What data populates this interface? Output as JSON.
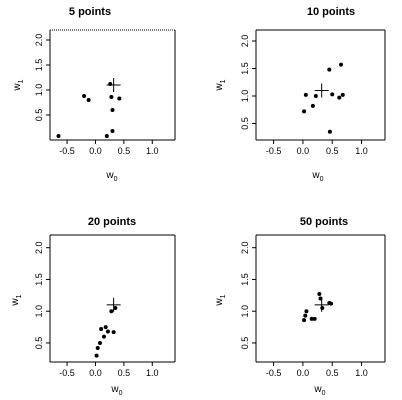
{
  "chart_data": [
    {
      "type": "scatter",
      "title": "5 points",
      "xlabel": "w",
      "xlabel_sub": "0",
      "ylabel": "w",
      "ylabel_sub": "1",
      "xlim": [
        -0.8,
        1.4
      ],
      "ylim": [
        0.0,
        2.2
      ],
      "xticks": [
        "-0.5",
        "0.0",
        "0.5",
        "1.0"
      ],
      "yticks": [
        "0.5",
        "1.0",
        "1.5",
        "2.0"
      ],
      "xtick_values": [
        -0.5,
        0.0,
        0.5,
        1.0
      ],
      "ytick_values": [
        0.5,
        1.0,
        1.5,
        2.0
      ],
      "top_border_dotted": true,
      "points": [
        {
          "x": -0.65,
          "y": 0.08
        },
        {
          "x": -0.2,
          "y": 0.88
        },
        {
          "x": -0.12,
          "y": 0.8
        },
        {
          "x": 0.2,
          "y": 0.08
        },
        {
          "x": 0.26,
          "y": 1.12
        },
        {
          "x": 0.28,
          "y": 0.86
        },
        {
          "x": 0.3,
          "y": 0.6
        },
        {
          "x": 0.3,
          "y": 0.18
        },
        {
          "x": 0.42,
          "y": 0.83
        }
      ],
      "cross": {
        "x": 0.32,
        "y": 1.1
      }
    },
    {
      "type": "scatter",
      "title": "10 points",
      "xlabel": "w",
      "xlabel_sub": "0",
      "ylabel": "w",
      "ylabel_sub": "1",
      "xlim": [
        -0.8,
        1.4
      ],
      "ylim": [
        0.2,
        2.2
      ],
      "xticks": [
        "-0.5",
        "0.0",
        "0.5",
        "1.0"
      ],
      "yticks": [
        "0.5",
        "1.0",
        "1.5",
        "2.0"
      ],
      "xtick_values": [
        -0.5,
        0.0,
        0.5,
        1.0
      ],
      "ytick_values": [
        0.5,
        1.0,
        1.5,
        2.0
      ],
      "top_border_dotted": false,
      "points": [
        {
          "x": 0.02,
          "y": 0.72
        },
        {
          "x": 0.05,
          "y": 1.02
        },
        {
          "x": 0.17,
          "y": 0.82
        },
        {
          "x": 0.22,
          "y": 1.0
        },
        {
          "x": 0.45,
          "y": 1.48
        },
        {
          "x": 0.46,
          "y": 0.35
        },
        {
          "x": 0.5,
          "y": 1.03
        },
        {
          "x": 0.62,
          "y": 0.97
        },
        {
          "x": 0.65,
          "y": 1.57
        },
        {
          "x": 0.68,
          "y": 1.02
        }
      ],
      "cross": {
        "x": 0.32,
        "y": 1.1
      }
    },
    {
      "type": "scatter",
      "title": "20 points",
      "xlabel": "w",
      "xlabel_sub": "0",
      "ylabel": "w",
      "ylabel_sub": "1",
      "xlim": [
        -0.8,
        1.4
      ],
      "ylim": [
        0.2,
        2.2
      ],
      "xticks": [
        "-0.5",
        "0.0",
        "0.5",
        "1.0"
      ],
      "yticks": [
        "0.5",
        "1.0",
        "1.5",
        "2.0"
      ],
      "xtick_values": [
        -0.5,
        0.0,
        0.5,
        1.0
      ],
      "ytick_values": [
        0.5,
        1.0,
        1.5,
        2.0
      ],
      "top_border_dotted": false,
      "points": [
        {
          "x": 0.02,
          "y": 0.3
        },
        {
          "x": 0.04,
          "y": 0.42
        },
        {
          "x": 0.08,
          "y": 0.5
        },
        {
          "x": 0.1,
          "y": 0.72
        },
        {
          "x": 0.15,
          "y": 0.6
        },
        {
          "x": 0.18,
          "y": 0.75
        },
        {
          "x": 0.22,
          "y": 0.68
        },
        {
          "x": 0.28,
          "y": 1.0
        },
        {
          "x": 0.32,
          "y": 0.67
        },
        {
          "x": 0.35,
          "y": 1.05
        }
      ],
      "cross": {
        "x": 0.32,
        "y": 1.1
      }
    },
    {
      "type": "scatter",
      "title": "50 points",
      "xlabel": "w",
      "xlabel_sub": "0",
      "ylabel": "w",
      "ylabel_sub": "1",
      "xlim": [
        -0.8,
        1.4
      ],
      "ylim": [
        0.2,
        2.2
      ],
      "xticks": [
        "-0.5",
        "0.0",
        "0.5",
        "1.0"
      ],
      "yticks": [
        "0.5",
        "1.0",
        "1.5",
        "2.0"
      ],
      "xtick_values": [
        -0.5,
        0.0,
        0.5,
        1.0
      ],
      "ytick_values": [
        0.5,
        1.0,
        1.5,
        2.0
      ],
      "top_border_dotted": false,
      "points": [
        {
          "x": 0.02,
          "y": 0.86
        },
        {
          "x": 0.04,
          "y": 0.93
        },
        {
          "x": 0.06,
          "y": 1.0
        },
        {
          "x": 0.15,
          "y": 0.88
        },
        {
          "x": 0.2,
          "y": 0.88
        },
        {
          "x": 0.28,
          "y": 1.27
        },
        {
          "x": 0.3,
          "y": 1.2
        },
        {
          "x": 0.33,
          "y": 1.05
        },
        {
          "x": 0.45,
          "y": 1.13
        },
        {
          "x": 0.48,
          "y": 1.12
        }
      ],
      "cross": {
        "x": 0.32,
        "y": 1.1
      }
    }
  ]
}
